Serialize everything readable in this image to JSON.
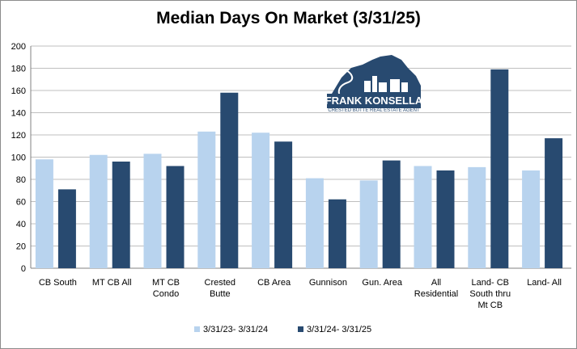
{
  "chart_data": {
    "type": "bar",
    "title": "Median Days On Market (3/31/25)",
    "categories": [
      [
        "CB South"
      ],
      [
        "MT CB All"
      ],
      [
        "MT CB",
        "Condo"
      ],
      [
        "Crested",
        "Butte"
      ],
      [
        "CB Area"
      ],
      [
        "Gunnison"
      ],
      [
        "Gun. Area"
      ],
      [
        "All",
        "Residential"
      ],
      [
        "Land- CB",
        "South thru",
        "Mt CB"
      ],
      [
        "Land- All"
      ]
    ],
    "series": [
      {
        "name": "3/31/23- 3/31/24",
        "color": "#b8d3ee",
        "values": [
          98,
          102,
          103,
          123,
          122,
          81,
          79,
          92,
          91,
          88
        ]
      },
      {
        "name": "3/31/24- 3/31/25",
        "color": "#284a70",
        "values": [
          71,
          96,
          92,
          158,
          114,
          62,
          97,
          88,
          179,
          117
        ]
      }
    ],
    "ylim": [
      0,
      200
    ],
    "yticks": [
      "0",
      "20",
      "40",
      "60",
      "80",
      "100",
      "120",
      "140",
      "160",
      "180",
      "200"
    ],
    "grid": true,
    "legend_position": "bottom"
  },
  "logo": {
    "name": "FRANK KONSELLA",
    "tagline": "CRESTED BUTTE REAL ESTATE AGENT",
    "color": "#284a70"
  }
}
